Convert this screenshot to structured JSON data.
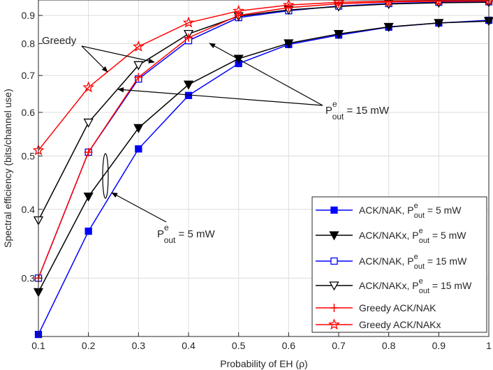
{
  "chart_data": {
    "type": "line",
    "xlabel": "Probability of EH (ρ)",
    "ylabel": "Spectral efficiency (bits/channel use)",
    "yscale": "log",
    "xlim": [
      0.1,
      1.0
    ],
    "ylim": [
      0.235,
      0.96
    ],
    "grid": true,
    "x": [
      0.1,
      0.2,
      0.3,
      0.4,
      0.5,
      0.6,
      0.7,
      0.8,
      0.9,
      1.0
    ],
    "x_ticks": [
      "0.1",
      "0.2",
      "0.3",
      "0.4",
      "0.5",
      "0.6",
      "0.7",
      "0.8",
      "0.9",
      "1"
    ],
    "y_ticks": [
      {
        "value": 0.3,
        "label": "0.3"
      },
      {
        "value": 0.4,
        "label": "0.4"
      },
      {
        "value": 0.5,
        "label": "0.5"
      },
      {
        "value": 0.6,
        "label": "0.6"
      },
      {
        "value": 0.7,
        "label": "0.7"
      },
      {
        "value": 0.8,
        "label": "0.8"
      },
      {
        "value": 0.9,
        "label": "0.9"
      }
    ],
    "legend_position": "bottom-right",
    "series": [
      {
        "name": "ACK/NAK, Pe_out = 5 mW",
        "legend_prefix": "ACK/NAK, P",
        "legend_sup": "e",
        "legend_sub": "out",
        "legend_suffix": " = 5 mW",
        "color": "#0000ff",
        "marker": "square-filled",
        "values": [
          0.237,
          0.365,
          0.515,
          0.644,
          0.736,
          0.797,
          0.829,
          0.857,
          0.872,
          0.882
        ]
      },
      {
        "name": "ACK/NAKx, Pe_out = 5 mW",
        "legend_prefix": "ACK/NAKx, P",
        "legend_sup": "e",
        "legend_sub": "out",
        "legend_suffix": " = 5 mW",
        "color": "#000000",
        "marker": "triangle-down-filled",
        "values": [
          0.283,
          0.422,
          0.562,
          0.674,
          0.751,
          0.801,
          0.833,
          0.858,
          0.872,
          0.879
        ]
      },
      {
        "name": "ACK/NAK, Pe_out = 15 mW",
        "legend_prefix": "ACK/NAK, P",
        "legend_sup": "e",
        "legend_sub": "out",
        "legend_suffix": " = 15 mW",
        "color": "#0000ff",
        "marker": "square-open",
        "values": [
          0.3,
          0.508,
          0.69,
          0.81,
          0.892,
          0.918,
          0.936,
          0.946,
          0.951,
          0.953
        ]
      },
      {
        "name": "ACK/NAKx, Pe_out = 15 mW",
        "legend_prefix": "ACK/NAKx, P",
        "legend_sup": "e",
        "legend_sub": "out",
        "legend_suffix": " = 15 mW",
        "color": "#000000",
        "marker": "triangle-down-open",
        "values": [
          0.382,
          0.575,
          0.731,
          0.833,
          0.897,
          0.921,
          0.934,
          0.944,
          0.949,
          0.951
        ]
      },
      {
        "name": "Greedy ACK/NAK",
        "legend_prefix": "Greedy ACK/NAK",
        "legend_sup": "",
        "legend_sub": "",
        "legend_suffix": "",
        "color": "#ff0000",
        "marker": "plus",
        "values": [
          0.3,
          0.508,
          0.695,
          0.82,
          0.9,
          0.93,
          0.945,
          0.952,
          0.955,
          0.956
        ]
      },
      {
        "name": "Greedy ACK/NAKx",
        "legend_prefix": "Greedy ACK/NAKx",
        "legend_sup": "",
        "legend_sub": "",
        "legend_suffix": "",
        "color": "#ff0000",
        "marker": "star",
        "values": [
          0.512,
          0.666,
          0.79,
          0.873,
          0.917,
          0.94,
          0.951,
          0.955,
          0.957,
          0.958
        ]
      }
    ],
    "annotations": [
      {
        "id": "greedy",
        "text": "Greedy"
      },
      {
        "id": "p15",
        "prefix": "P",
        "sup": "e",
        "sub": "out",
        "suffix": " = 15 mW"
      },
      {
        "id": "p5",
        "prefix": "P",
        "sup": "e",
        "sub": "out",
        "suffix": " = 5 mW"
      }
    ]
  }
}
